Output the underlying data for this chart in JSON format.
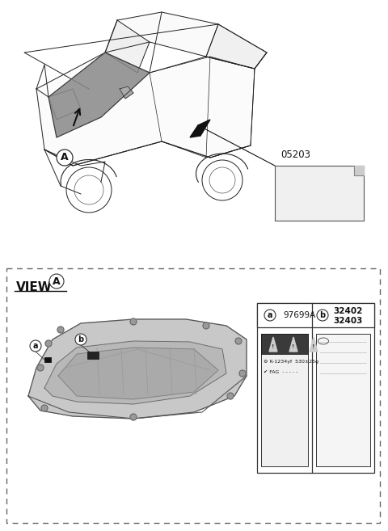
{
  "bg_color": "#ffffff",
  "car_part_number_top": "05203",
  "label_a_part": "97699A",
  "label_b_parts": [
    "32402",
    "32403"
  ],
  "view_label": "VIEW",
  "view_circle_letter": "A",
  "ac_label_text": "K-1234yf  530±25g",
  "fag_label_text": "FAG",
  "line_color": "#222222",
  "gray_fill": "#c0c0c0",
  "dark_fill": "#555555"
}
